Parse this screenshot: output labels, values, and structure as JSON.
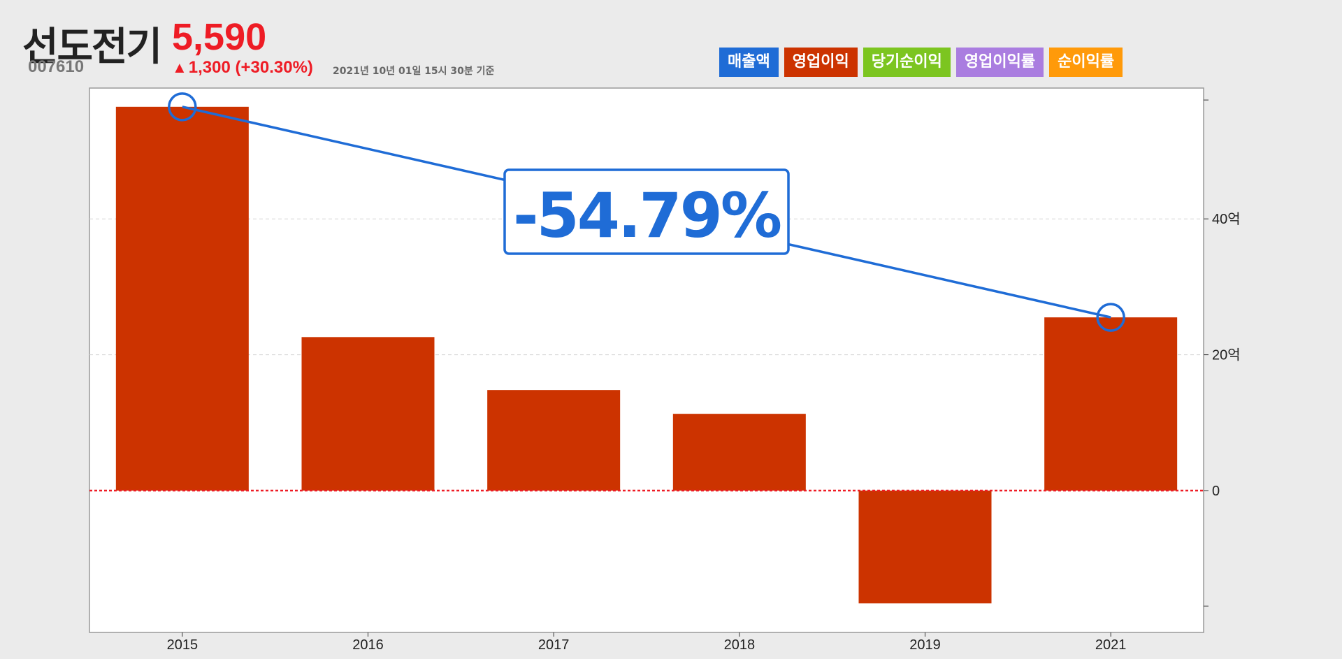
{
  "company": {
    "name": "선도전기",
    "code": "007610"
  },
  "quote": {
    "price": "5,590",
    "arrow": "▲",
    "change": "1,300 (+30.30%)",
    "timestamp": "2021년 10년 01일 15시 30분 기준"
  },
  "legend": [
    {
      "label": "매출액",
      "color": "#1f6cd6"
    },
    {
      "label": "영업이익",
      "color": "#cc3300"
    },
    {
      "label": "당기순이익",
      "color": "#7cc520"
    },
    {
      "label": "영업이익률",
      "color": "#aa7de0"
    },
    {
      "label": "순이익률",
      "color": "#ff9a0a"
    }
  ],
  "chart_data": {
    "type": "bar",
    "title": "",
    "xlabel": "",
    "ylabel": "",
    "categories": [
      "2015",
      "2016",
      "2017",
      "2018",
      "2019",
      "2021"
    ],
    "series": [
      {
        "name": "영업이익",
        "color": "#cc3300",
        "values": [
          56.5,
          22.6,
          14.8,
          11.3,
          -16.6,
          25.5
        ]
      }
    ],
    "ylim": [
      -21,
      60
    ],
    "yticks": [
      {
        "value": 40,
        "label": "40억"
      },
      {
        "value": 20,
        "label": "20억"
      },
      {
        "value": 0,
        "label": "0"
      }
    ],
    "extra_ticks": [
      57.5,
      -17
    ],
    "zero_line_color": "#ee1c25",
    "grid": "dashed horizontal",
    "annotation": {
      "text": "-54.79%",
      "from_category": "2015",
      "to_category": "2021",
      "color": "#1f6cd6"
    }
  }
}
